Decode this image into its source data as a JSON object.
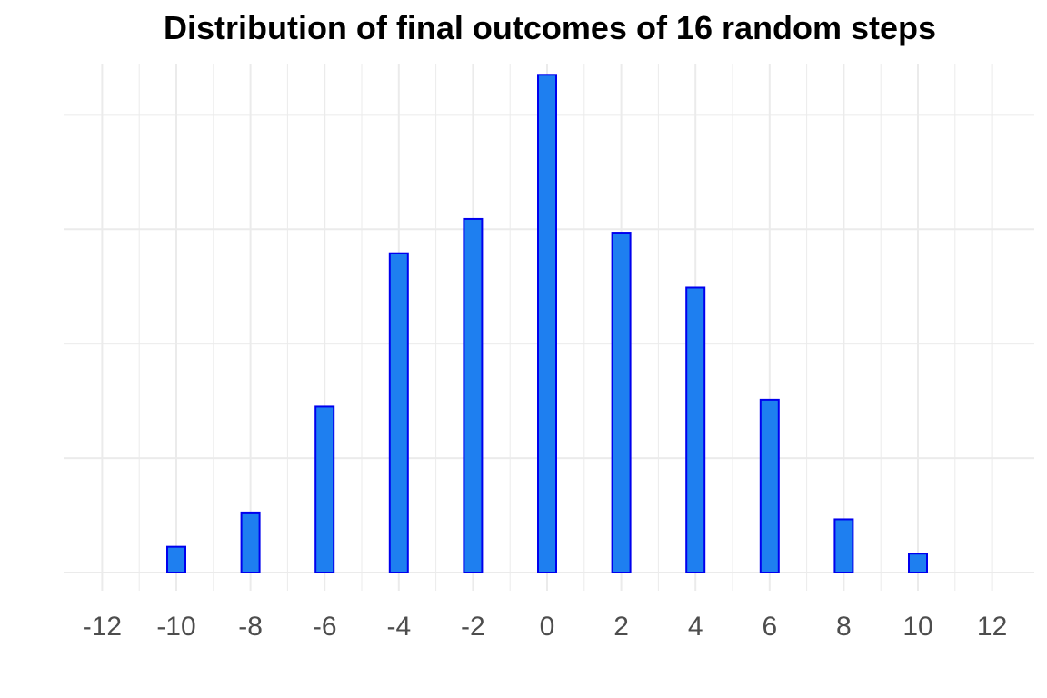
{
  "chart_data": {
    "type": "bar",
    "title": "Distribution of final outcomes of 16 random steps",
    "xlabel": "",
    "ylabel": "",
    "x": [
      -10,
      -8,
      -6,
      -4,
      -2,
      0,
      2,
      4,
      6,
      8,
      10
    ],
    "values": [
      0.0225,
      0.0525,
      0.145,
      0.279,
      0.309,
      0.435,
      0.297,
      0.249,
      0.151,
      0.0465,
      0.0165
    ],
    "xticks": [
      "-12",
      "-10",
      "-8",
      "-6",
      "-4",
      "-2",
      "0",
      "2",
      "4",
      "6",
      "8",
      "10",
      "12"
    ],
    "xlim": [
      -12,
      12
    ],
    "ylim": [
      0,
      0.44
    ],
    "grid": true,
    "y_tick_labels_shown": false,
    "legend": "none",
    "colors": {
      "bar_fill": "#1e7ff0",
      "bar_stroke": "#0000ee",
      "grid": "#ebebeb",
      "tick_text": "#4d4d4d"
    }
  }
}
